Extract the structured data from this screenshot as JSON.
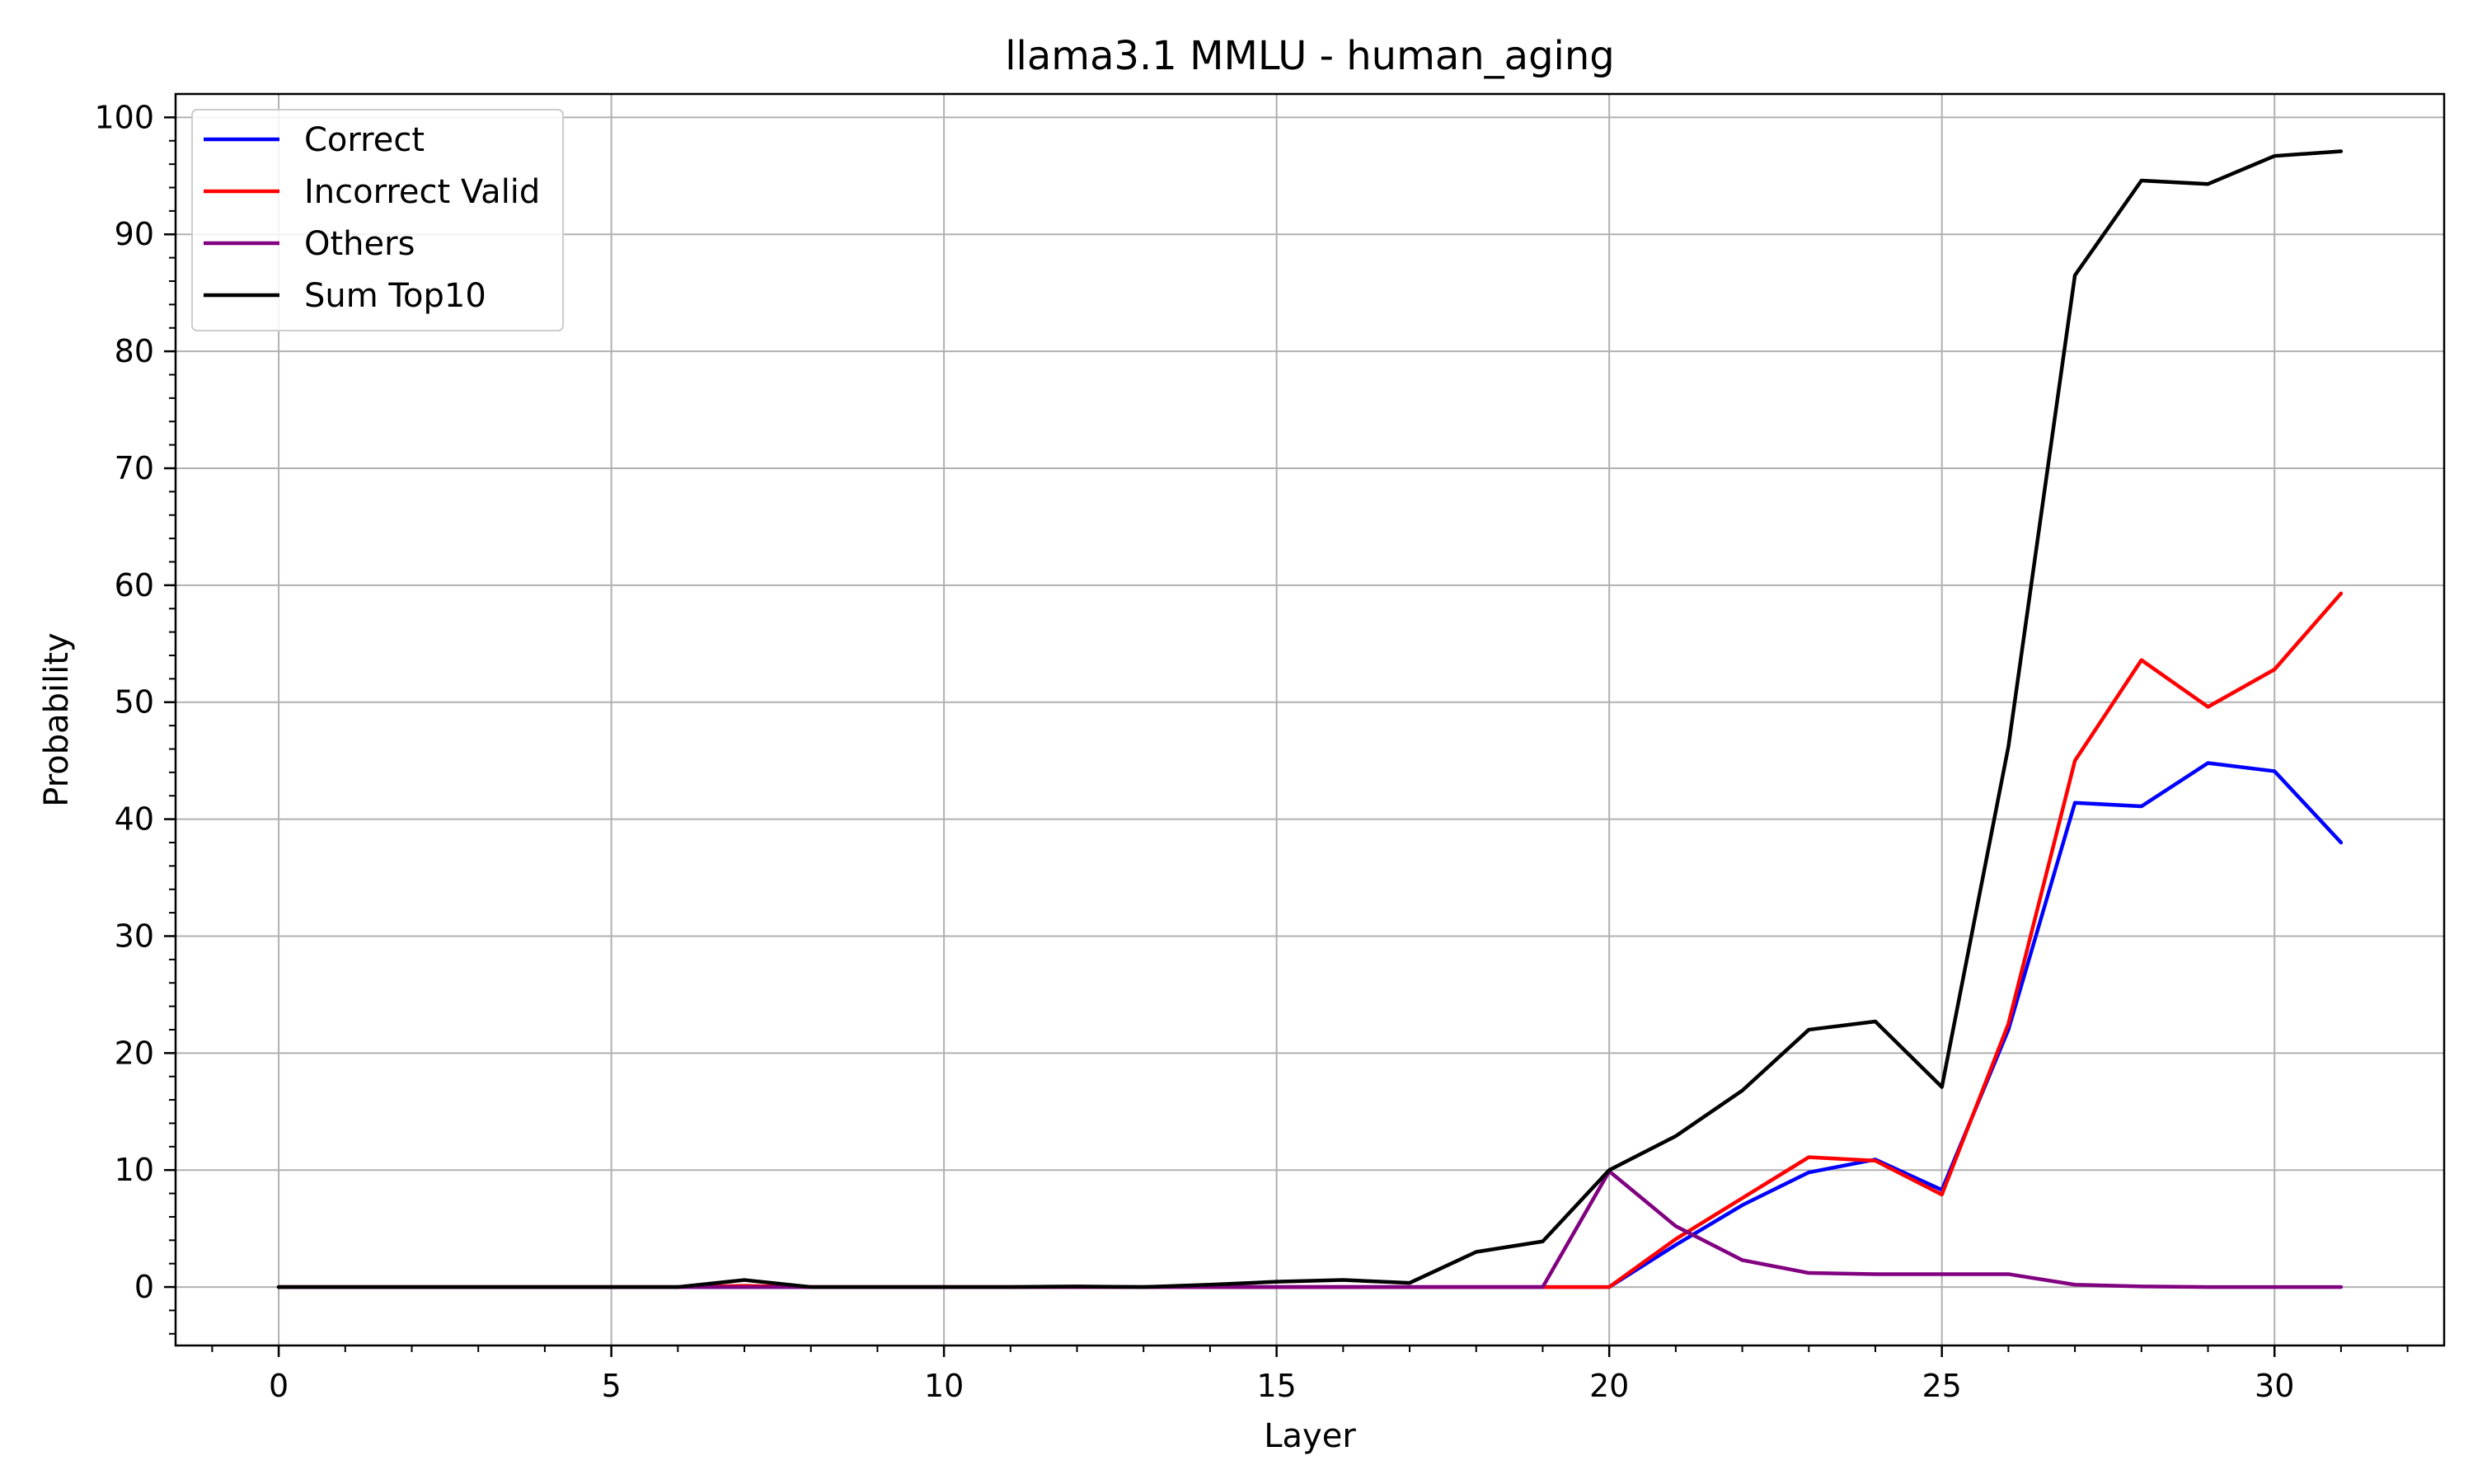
{
  "chart_data": {
    "type": "line",
    "title": "llama3.1 MMLU - human_aging",
    "xlabel": "Layer",
    "ylabel": "Probability",
    "xlim": [
      -1.55,
      32.55
    ],
    "ylim": [
      -5,
      102
    ],
    "xticks": [
      0,
      5,
      10,
      15,
      20,
      25,
      30
    ],
    "yticks": [
      0,
      10,
      20,
      30,
      40,
      50,
      60,
      70,
      80,
      90,
      100
    ],
    "grid": true,
    "legend_position": "top-left",
    "x": [
      0,
      1,
      2,
      3,
      4,
      5,
      6,
      7,
      8,
      9,
      10,
      11,
      12,
      13,
      14,
      15,
      16,
      17,
      18,
      19,
      20,
      21,
      22,
      23,
      24,
      25,
      26,
      27,
      28,
      29,
      30,
      31
    ],
    "series": [
      {
        "name": "Correct",
        "color": "#0000ff",
        "values": [
          0,
          0,
          0,
          0,
          0,
          0,
          0,
          0,
          0,
          0,
          0,
          0,
          0,
          0,
          0,
          0,
          0,
          0,
          0,
          0,
          0,
          3.6,
          7.0,
          9.8,
          10.9,
          8.3,
          22.0,
          41.4,
          41.1,
          44.8,
          44.1,
          38.0
        ]
      },
      {
        "name": "Incorrect Valid",
        "color": "#ff0000",
        "values": [
          0,
          0,
          0,
          0,
          0,
          0,
          0,
          0.1,
          0,
          0,
          0,
          0,
          0,
          0,
          0,
          0,
          0,
          0,
          0,
          0,
          0,
          4.1,
          7.6,
          11.1,
          10.8,
          7.9,
          22.5,
          45.0,
          53.6,
          49.6,
          52.8,
          59.3
        ]
      },
      {
        "name": "Others",
        "color": "#800080",
        "values": [
          0,
          0,
          0,
          0,
          0,
          0,
          0,
          0,
          0,
          0,
          0,
          0,
          0,
          0,
          0,
          0,
          0,
          0,
          0,
          0,
          9.9,
          5.2,
          2.3,
          1.2,
          1.1,
          1.1,
          1.1,
          0.2,
          0.05,
          0,
          0,
          0
        ]
      },
      {
        "name": "Sum Top10",
        "color": "#000000",
        "values": [
          0,
          0,
          0,
          0,
          0,
          0,
          0,
          0.6,
          0,
          0,
          0,
          0,
          0.05,
          0,
          0.2,
          0.45,
          0.6,
          0.35,
          3.0,
          3.9,
          10.0,
          12.9,
          16.8,
          22.0,
          22.7,
          17.1,
          46.2,
          86.5,
          94.6,
          94.3,
          96.7,
          97.1
        ]
      }
    ]
  }
}
